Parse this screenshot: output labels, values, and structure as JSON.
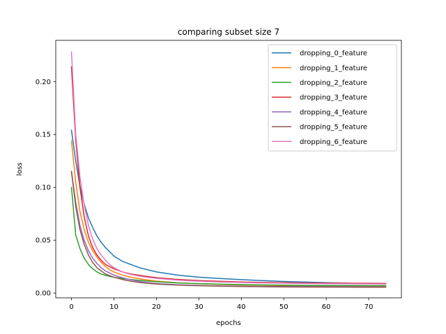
{
  "chart_data": {
    "type": "line",
    "title": "comparing subset size 7",
    "xlabel": "epochs",
    "ylabel": "loss",
    "xlim": [
      -3.7,
      77.7
    ],
    "ylim": [
      -0.0045,
      0.239
    ],
    "xticks": [
      0,
      10,
      20,
      30,
      40,
      50,
      60,
      70
    ],
    "yticks": [
      0.0,
      0.05,
      0.1,
      0.15,
      0.2
    ],
    "ytick_labels": [
      "0.00",
      "0.05",
      "0.10",
      "0.15",
      "0.20"
    ],
    "grid": false,
    "legend_position": "top-right",
    "x": [
      0,
      1,
      2,
      3,
      4,
      5,
      6,
      7,
      8,
      9,
      10,
      12,
      14,
      16,
      18,
      20,
      25,
      30,
      35,
      40,
      45,
      50,
      55,
      60,
      65,
      70,
      74
    ],
    "series": [
      {
        "name": "dropping_0_feature",
        "color": "#1f77b4",
        "values": [
          0.154,
          0.125,
          0.101,
          0.084,
          0.071,
          0.062,
          0.054,
          0.048,
          0.043,
          0.039,
          0.035,
          0.03,
          0.027,
          0.024,
          0.022,
          0.02,
          0.017,
          0.015,
          0.0138,
          0.0127,
          0.0118,
          0.011,
          0.0104,
          0.0098,
          0.0093,
          0.0089,
          0.0087
        ]
      },
      {
        "name": "dropping_1_feature",
        "color": "#ff7f0e",
        "values": [
          0.144,
          0.105,
          0.077,
          0.06,
          0.048,
          0.04,
          0.034,
          0.029,
          0.025,
          0.022,
          0.02,
          0.017,
          0.015,
          0.0135,
          0.0123,
          0.0113,
          0.0097,
          0.0088,
          0.0082,
          0.0077,
          0.0074,
          0.0071,
          0.0069,
          0.0068,
          0.0067,
          0.0066,
          0.0065
        ]
      },
      {
        "name": "dropping_2_feature",
        "color": "#2ca02c",
        "values": [
          0.1,
          0.055,
          0.042,
          0.033,
          0.027,
          0.023,
          0.02,
          0.018,
          0.0168,
          0.0158,
          0.015,
          0.0138,
          0.0128,
          0.012,
          0.0113,
          0.0107,
          0.0096,
          0.0089,
          0.0084,
          0.008,
          0.0077,
          0.0075,
          0.0073,
          0.0072,
          0.0071,
          0.007,
          0.007
        ]
      },
      {
        "name": "dropping_3_feature",
        "color": "#d62728",
        "values": [
          0.214,
          0.145,
          0.1,
          0.072,
          0.054,
          0.043,
          0.036,
          0.031,
          0.027,
          0.025,
          0.023,
          0.02,
          0.018,
          0.0168,
          0.0156,
          0.0146,
          0.0129,
          0.0118,
          0.0111,
          0.0105,
          0.0101,
          0.0098,
          0.0096,
          0.0094,
          0.0093,
          0.0092,
          0.0091
        ]
      },
      {
        "name": "dropping_4_feature",
        "color": "#9467bd",
        "values": [
          0.115,
          0.086,
          0.064,
          0.05,
          0.04,
          0.033,
          0.028,
          0.024,
          0.021,
          0.019,
          0.017,
          0.0145,
          0.0125,
          0.011,
          0.0098,
          0.009,
          0.0078,
          0.0072,
          0.0068,
          0.0065,
          0.0063,
          0.0062,
          0.0061,
          0.006,
          0.006,
          0.0059,
          0.0059
        ]
      },
      {
        "name": "dropping_5_feature",
        "color": "#8c564b",
        "values": [
          0.115,
          0.082,
          0.06,
          0.046,
          0.036,
          0.029,
          0.024,
          0.021,
          0.018,
          0.0165,
          0.015,
          0.0128,
          0.0112,
          0.01,
          0.0092,
          0.0085,
          0.0075,
          0.0069,
          0.0065,
          0.0062,
          0.006,
          0.0058,
          0.0057,
          0.0056,
          0.0056,
          0.0055,
          0.0055
        ]
      },
      {
        "name": "dropping_6_feature",
        "color": "#e377c2",
        "values": [
          0.228,
          0.15,
          0.11,
          0.083,
          0.064,
          0.051,
          0.042,
          0.036,
          0.031,
          0.027,
          0.024,
          0.02,
          0.0175,
          0.016,
          0.0148,
          0.0139,
          0.0122,
          0.0112,
          0.0105,
          0.01,
          0.0096,
          0.0093,
          0.0091,
          0.0089,
          0.0088,
          0.0087,
          0.0086
        ]
      }
    ]
  }
}
